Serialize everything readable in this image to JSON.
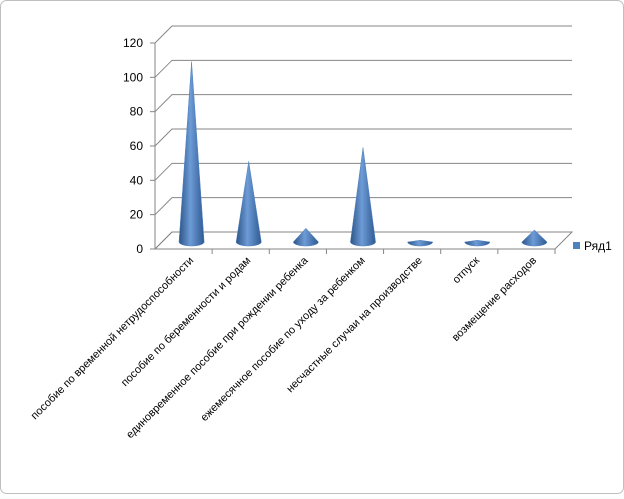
{
  "chart_data": {
    "type": "cone",
    "categories": [
      "пособие по временной  нетрудоспособности",
      "пособие по беременности  и родам",
      "единовременное  пособие при рождении ребенка",
      "ежемесячное  пособие по уходу за ребенком",
      "несчастные случаи на производстве",
      "отпуск",
      "возмещение  расходов"
    ],
    "series": [
      {
        "name": "Ряд1",
        "color": "#4f81bd",
        "values": [
          105,
          47,
          8,
          55,
          1,
          1,
          7
        ]
      }
    ],
    "ylim": [
      0,
      120
    ],
    "yticks": [
      0,
      20,
      40,
      60,
      80,
      100,
      120
    ],
    "grid": true,
    "legend": "right"
  }
}
